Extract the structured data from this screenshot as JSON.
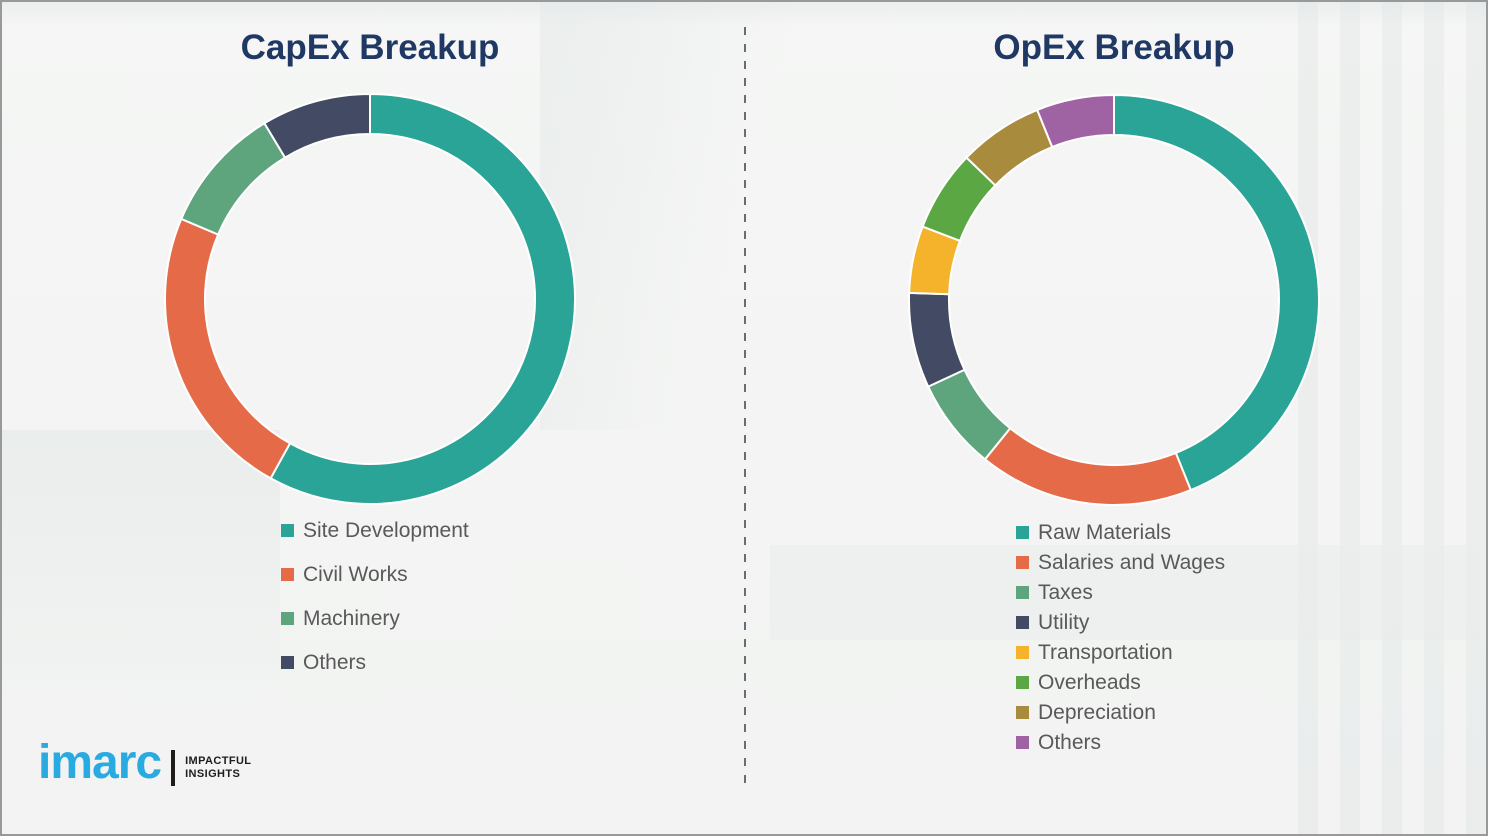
{
  "page": {
    "background_color": "#f4f5f4",
    "frame_color": "#97999b",
    "divider_color": "#696d71",
    "title_color": "#1f3864",
    "legend_text_color": "#595959"
  },
  "chart_data": [
    {
      "type": "pie",
      "subtype": "donut",
      "title": "CapEx Breakup",
      "start_angle_deg": 0,
      "direction": "clockwise",
      "legend_position": "bottom-left",
      "segments": [
        {
          "label": "Site Development",
          "color": "#2aa496",
          "degrees": 209,
          "percent_est": 58
        },
        {
          "label": "Civil Works",
          "color": "#e56a47",
          "degrees": 84,
          "percent_est": 23
        },
        {
          "label": "Machinery",
          "color": "#5ea57e",
          "degrees": 36,
          "percent_est": 10
        },
        {
          "label": "Others",
          "color": "#434a63",
          "degrees": 31,
          "percent_est": 9
        }
      ]
    },
    {
      "type": "pie",
      "subtype": "donut",
      "title": "OpEx Breakup",
      "start_angle_deg": 0,
      "direction": "clockwise",
      "legend_position": "bottom-left",
      "segments": [
        {
          "label": "Raw Materials",
          "color": "#2aa496",
          "degrees": 158,
          "percent_est": 44
        },
        {
          "label": "Salaries and Wages",
          "color": "#e56a47",
          "degrees": 61,
          "percent_est": 17
        },
        {
          "label": "Taxes",
          "color": "#5ea57e",
          "degrees": 26,
          "percent_est": 7
        },
        {
          "label": "Utility",
          "color": "#434a63",
          "degrees": 27,
          "percent_est": 7.5
        },
        {
          "label": "Transportation",
          "color": "#f5b32b",
          "degrees": 19,
          "percent_est": 5.5
        },
        {
          "label": "Overheads",
          "color": "#5ba744",
          "degrees": 23,
          "percent_est": 6.5
        },
        {
          "label": "Depreciation",
          "color": "#a98b3d",
          "degrees": 24,
          "percent_est": 6.5
        },
        {
          "label": "Others",
          "color": "#9f62a3",
          "degrees": 22,
          "percent_est": 6
        }
      ]
    }
  ],
  "logo": {
    "brand": "imarc",
    "brand_color": "#29aae1",
    "tagline_line1": "IMPACTFUL",
    "tagline_line2": "INSIGHTS"
  }
}
